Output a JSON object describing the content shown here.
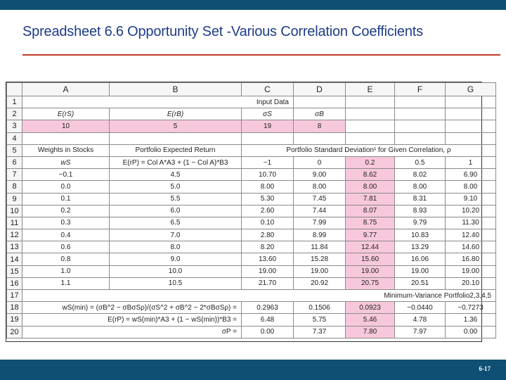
{
  "slide": {
    "title": "Spreadsheet 6.6 Opportunity Set -Various Correlation Coefficients",
    "page_number": "6-17"
  },
  "columns": [
    "A",
    "B",
    "C",
    "D",
    "E",
    "F",
    "G"
  ],
  "rows": {
    "r1": {
      "num": "1",
      "input_data": "Input Data"
    },
    "r2": {
      "num": "2",
      "a": "E(rS)",
      "b": "E(rB)",
      "c": "σS",
      "d": "σB"
    },
    "r3": {
      "num": "3",
      "a": "10",
      "b": "5",
      "c": "19",
      "d": "8"
    },
    "r4": {
      "num": "4"
    },
    "r5": {
      "num": "5",
      "a": "Weights in Stocks",
      "b": "Portfolio Expected Return",
      "cg": "Portfolio Standard Deviation¹ for Given Correlation, ρ"
    },
    "r6": {
      "num": "6",
      "a": "wS",
      "b": "E(rP) = Col A*A3 + (1 − Col A)*B3",
      "c": "−1",
      "d": "0",
      "e": "0.2",
      "f": "0.5",
      "g": "1"
    },
    "r17": {
      "num": "17",
      "label": "Minimum-Variance Portfolio2,3,4,5"
    },
    "r18": {
      "num": "18",
      "label": "wS(min) = (σB^2 − σBσSρ)/(σS^2 + σB^2 − 2*σBσSρ) =",
      "c": "0.2963",
      "d": "0.1506",
      "e": "0.0923",
      "f": "−0.0440",
      "g": "−0.7273"
    },
    "r19": {
      "num": "19",
      "label": "E(rP) = wS(min)*A3 + (1 − wS(min))*B3 =",
      "c": "6.48",
      "d": "5.75",
      "e": "5.46",
      "f": "4.78",
      "g": "1.36"
    },
    "r20": {
      "num": "20",
      "label": "σP =",
      "c": "0.00",
      "d": "7.37",
      "e": "7.80",
      "f": "7.97",
      "g": "0.00"
    }
  },
  "data_rows": [
    {
      "num": "7",
      "a": "−0.1",
      "b": "4.5",
      "c": "10.70",
      "d": "9.00",
      "e": "8.62",
      "f": "8.02",
      "g": "6.90"
    },
    {
      "num": "8",
      "a": "0.0",
      "b": "5.0",
      "c": "8.00",
      "d": "8.00",
      "e": "8.00",
      "f": "8.00",
      "g": "8.00"
    },
    {
      "num": "9",
      "a": "0.1",
      "b": "5.5",
      "c": "5.30",
      "d": "7.45",
      "e": "7.81",
      "f": "8.31",
      "g": "9.10"
    },
    {
      "num": "10",
      "a": "0.2",
      "b": "6.0",
      "c": "2.60",
      "d": "7.44",
      "e": "8.07",
      "f": "8.93",
      "g": "10.20"
    },
    {
      "num": "11",
      "a": "0.3",
      "b": "6.5",
      "c": "0.10",
      "d": "7.99",
      "e": "8.75",
      "f": "9.79",
      "g": "11.30"
    },
    {
      "num": "12",
      "a": "0.4",
      "b": "7.0",
      "c": "2.80",
      "d": "8.99",
      "e": "9.77",
      "f": "10.83",
      "g": "12.40"
    },
    {
      "num": "13",
      "a": "0.6",
      "b": "8.0",
      "c": "8.20",
      "d": "11.84",
      "e": "12.44",
      "f": "13.29",
      "g": "14.60"
    },
    {
      "num": "14",
      "a": "0.8",
      "b": "9.0",
      "c": "13.60",
      "d": "15.28",
      "e": "15.60",
      "f": "16.06",
      "g": "16.80"
    },
    {
      "num": "15",
      "a": "1.0",
      "b": "10.0",
      "c": "19.00",
      "d": "19.00",
      "e": "19.00",
      "f": "19.00",
      "g": "19.00"
    },
    {
      "num": "16",
      "a": "1.1",
      "b": "10.5",
      "c": "21.70",
      "d": "20.92",
      "e": "20.75",
      "f": "20.51",
      "g": "20.10"
    }
  ],
  "colors": {
    "bar": "#0f4f73",
    "title": "#1f3c88",
    "rule": "#c0392b",
    "highlight": "#f7c8dc"
  }
}
